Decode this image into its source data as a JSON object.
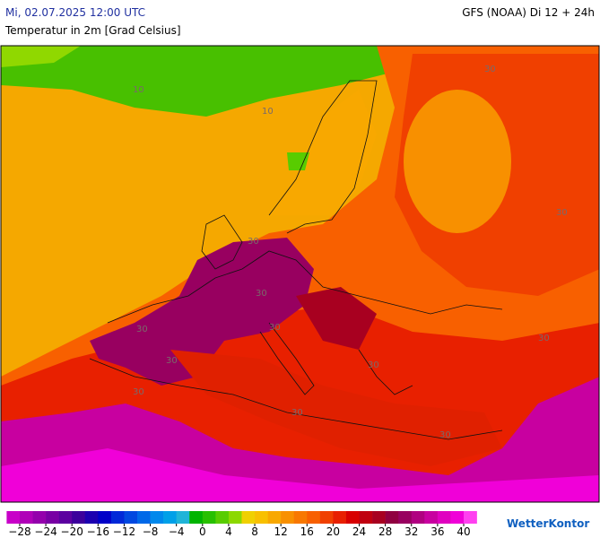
{
  "header": {
    "date": "Mi, 02.07.2025 12:00 UTC",
    "model": "GFS (NOAA) Di 12 + 24h",
    "title": "Temperatur in 2m [Grad Celsius]"
  },
  "map": {
    "contour_labels": [
      "10",
      "10",
      "30",
      "30",
      "30",
      "30",
      "30",
      "30",
      "30",
      "30",
      "30",
      "30",
      "30",
      "30"
    ]
  },
  "legend": {
    "colors": [
      "#c800c8",
      "#b000b8",
      "#9400ac",
      "#7800a4",
      "#5c00a0",
      "#3c009c",
      "#1c00b0",
      "#0000c8",
      "#0028d8",
      "#0048e0",
      "#0068e8",
      "#0088ec",
      "#00a0e8",
      "#20b4d8",
      "#00b400",
      "#28c000",
      "#58cc00",
      "#8cd800",
      "#f0d000",
      "#f8c000",
      "#f8a800",
      "#f89000",
      "#f87800",
      "#f86000",
      "#f04000",
      "#e82000",
      "#d80000",
      "#c00010",
      "#a80020",
      "#900040",
      "#980060",
      "#b00080",
      "#c800a0",
      "#e000c0",
      "#f000d8",
      "#ff40f0"
    ],
    "labels": [
      "−28",
      "−24",
      "−20",
      "−16",
      "−12",
      "−8",
      "−4",
      "0",
      "4",
      "8",
      "12",
      "16",
      "20",
      "24",
      "28",
      "32",
      "36",
      "40"
    ]
  },
  "logo": "WetterKontor"
}
